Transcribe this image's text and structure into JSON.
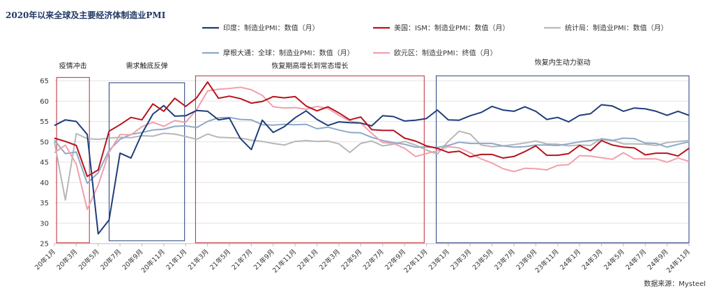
{
  "chart_data": {
    "type": "line",
    "title": "2020年以来全球及主要经济体制造业PMI",
    "source": "数据来源：Mysteel",
    "ylim": [
      25,
      65
    ],
    "yticks": [
      25,
      30,
      35,
      40,
      45,
      50,
      55,
      60,
      65
    ],
    "x_tick_labels": [
      "20年1月",
      "20年3月",
      "20年5月",
      "20年7月",
      "20年9月",
      "20年11月",
      "21年1月",
      "21年3月",
      "21年5月",
      "21年7月",
      "21年9月",
      "21年11月",
      "22年1月",
      "22年3月",
      "22年5月",
      "22年7月",
      "22年9月",
      "22年11月",
      "23年1月",
      "23年3月",
      "23年5月",
      "23年7月",
      "23年9月",
      "23年11月",
      "24年1月",
      "24年3月",
      "24年5月",
      "24年7月",
      "24年9月",
      "24年11月"
    ],
    "grid": "horizontal",
    "legend_position": "top",
    "series": [
      {
        "name": "印度：制造业PMI：数值（月）",
        "color": "#1f3d7a",
        "values": [
          54.0,
          55.4,
          55.0,
          51.8,
          27.4,
          30.8,
          47.2,
          46.0,
          52.0,
          56.8,
          58.9,
          56.3,
          56.4,
          57.7,
          57.5,
          55.4,
          55.8,
          50.8,
          48.1,
          55.3,
          52.3,
          53.7,
          55.9,
          57.6,
          55.5,
          54.0,
          54.9,
          54.7,
          54.6,
          53.9,
          56.4,
          56.2,
          55.1,
          55.3,
          55.7,
          57.8,
          55.4,
          55.3,
          56.4,
          57.2,
          58.7,
          57.8,
          57.5,
          58.6,
          57.5,
          55.5,
          56.0,
          54.9,
          56.5,
          56.9,
          59.1,
          58.8,
          57.5,
          58.3,
          58.1,
          57.5,
          56.5,
          57.5,
          56.5
        ]
      },
      {
        "name": "美国：ISM：制造业PMI：数值（月）",
        "color": "#b8121b",
        "values": [
          50.9,
          50.1,
          49.1,
          41.5,
          43.1,
          52.6,
          54.2,
          56.0,
          55.4,
          59.3,
          57.5,
          60.7,
          58.7,
          60.8,
          64.7,
          60.7,
          61.2,
          60.6,
          59.5,
          59.9,
          61.1,
          60.8,
          61.1,
          58.8,
          57.6,
          58.6,
          57.1,
          55.4,
          56.1,
          53.0,
          52.8,
          52.8,
          50.9,
          50.2,
          49.0,
          48.4,
          47.4,
          47.7,
          46.3,
          46.9,
          46.9,
          46.0,
          46.4,
          47.6,
          49.0,
          46.7,
          46.7,
          47.1,
          49.1,
          47.8,
          50.3,
          49.2,
          48.7,
          48.5,
          46.8,
          47.2,
          47.2,
          46.5,
          48.4
        ]
      },
      {
        "name": "统计局：制造业PMI：数值（月）",
        "color": "#b7b7b7",
        "values": [
          50.0,
          35.7,
          52.0,
          50.8,
          50.6,
          50.9,
          51.1,
          51.0,
          51.5,
          51.4,
          52.1,
          51.9,
          51.3,
          50.6,
          51.9,
          51.1,
          51.0,
          50.9,
          50.4,
          50.1,
          49.6,
          49.2,
          50.1,
          50.3,
          50.1,
          50.2,
          49.5,
          47.4,
          49.6,
          50.2,
          49.0,
          49.4,
          50.1,
          49.2,
          48.0,
          47.0,
          50.1,
          52.6,
          51.9,
          49.2,
          48.8,
          49.0,
          49.3,
          49.7,
          50.2,
          49.5,
          49.4,
          49.0,
          49.2,
          49.1,
          50.8,
          50.4,
          49.5,
          49.5,
          49.4,
          49.1,
          49.8,
          50.1,
          50.3
        ]
      },
      {
        "name": "摩根大通：全球：制造业PMI：数值（月）",
        "color": "#8ea9c8",
        "values": [
          50.4,
          47.1,
          47.5,
          39.8,
          42.4,
          47.9,
          50.6,
          51.8,
          52.3,
          52.9,
          53.1,
          53.8,
          53.9,
          53.5,
          55.0,
          55.9,
          56.0,
          55.5,
          55.4,
          54.2,
          54.1,
          54.3,
          54.2,
          54.3,
          53.2,
          53.6,
          52.9,
          52.3,
          52.2,
          51.1,
          50.3,
          49.8,
          49.4,
          48.7,
          48.7,
          48.6,
          49.1,
          49.9,
          49.6,
          49.6,
          49.6,
          49.0,
          48.7,
          48.8,
          49.2,
          49.2,
          49.1,
          49.5,
          50.0,
          50.3,
          50.6,
          50.3,
          50.9,
          50.8,
          49.7,
          49.6,
          48.7,
          49.4,
          50.0
        ]
      },
      {
        "name": "欧元区：制造业PMI：终值（月）",
        "color": "#f0a0ac",
        "values": [
          47.3,
          49.2,
          44.5,
          33.4,
          39.4,
          47.4,
          51.8,
          51.7,
          53.7,
          54.8,
          53.8,
          55.2,
          54.8,
          57.9,
          62.5,
          62.9,
          63.1,
          63.4,
          62.8,
          61.4,
          58.6,
          58.3,
          58.4,
          58.0,
          58.7,
          58.2,
          56.5,
          55.1,
          54.6,
          52.1,
          49.8,
          49.6,
          48.4,
          46.4,
          47.1,
          47.8,
          48.8,
          48.5,
          47.3,
          45.8,
          44.8,
          43.4,
          42.7,
          43.5,
          43.4,
          43.1,
          44.2,
          44.4,
          46.6,
          46.5,
          46.1,
          45.7,
          47.3,
          45.8,
          45.8,
          45.8,
          45.0,
          46.0,
          45.2
        ]
      }
    ],
    "phases": [
      {
        "label": "疫情冲击",
        "color": "#c0262d"
      },
      {
        "label": "需求触底反弹",
        "color": "#1f3d7a"
      },
      {
        "label": "恢复期高增长到常态增长",
        "color": "#c0262d"
      },
      {
        "label": "恢复内生动力驱动",
        "color": "#1f3d7a"
      }
    ]
  }
}
